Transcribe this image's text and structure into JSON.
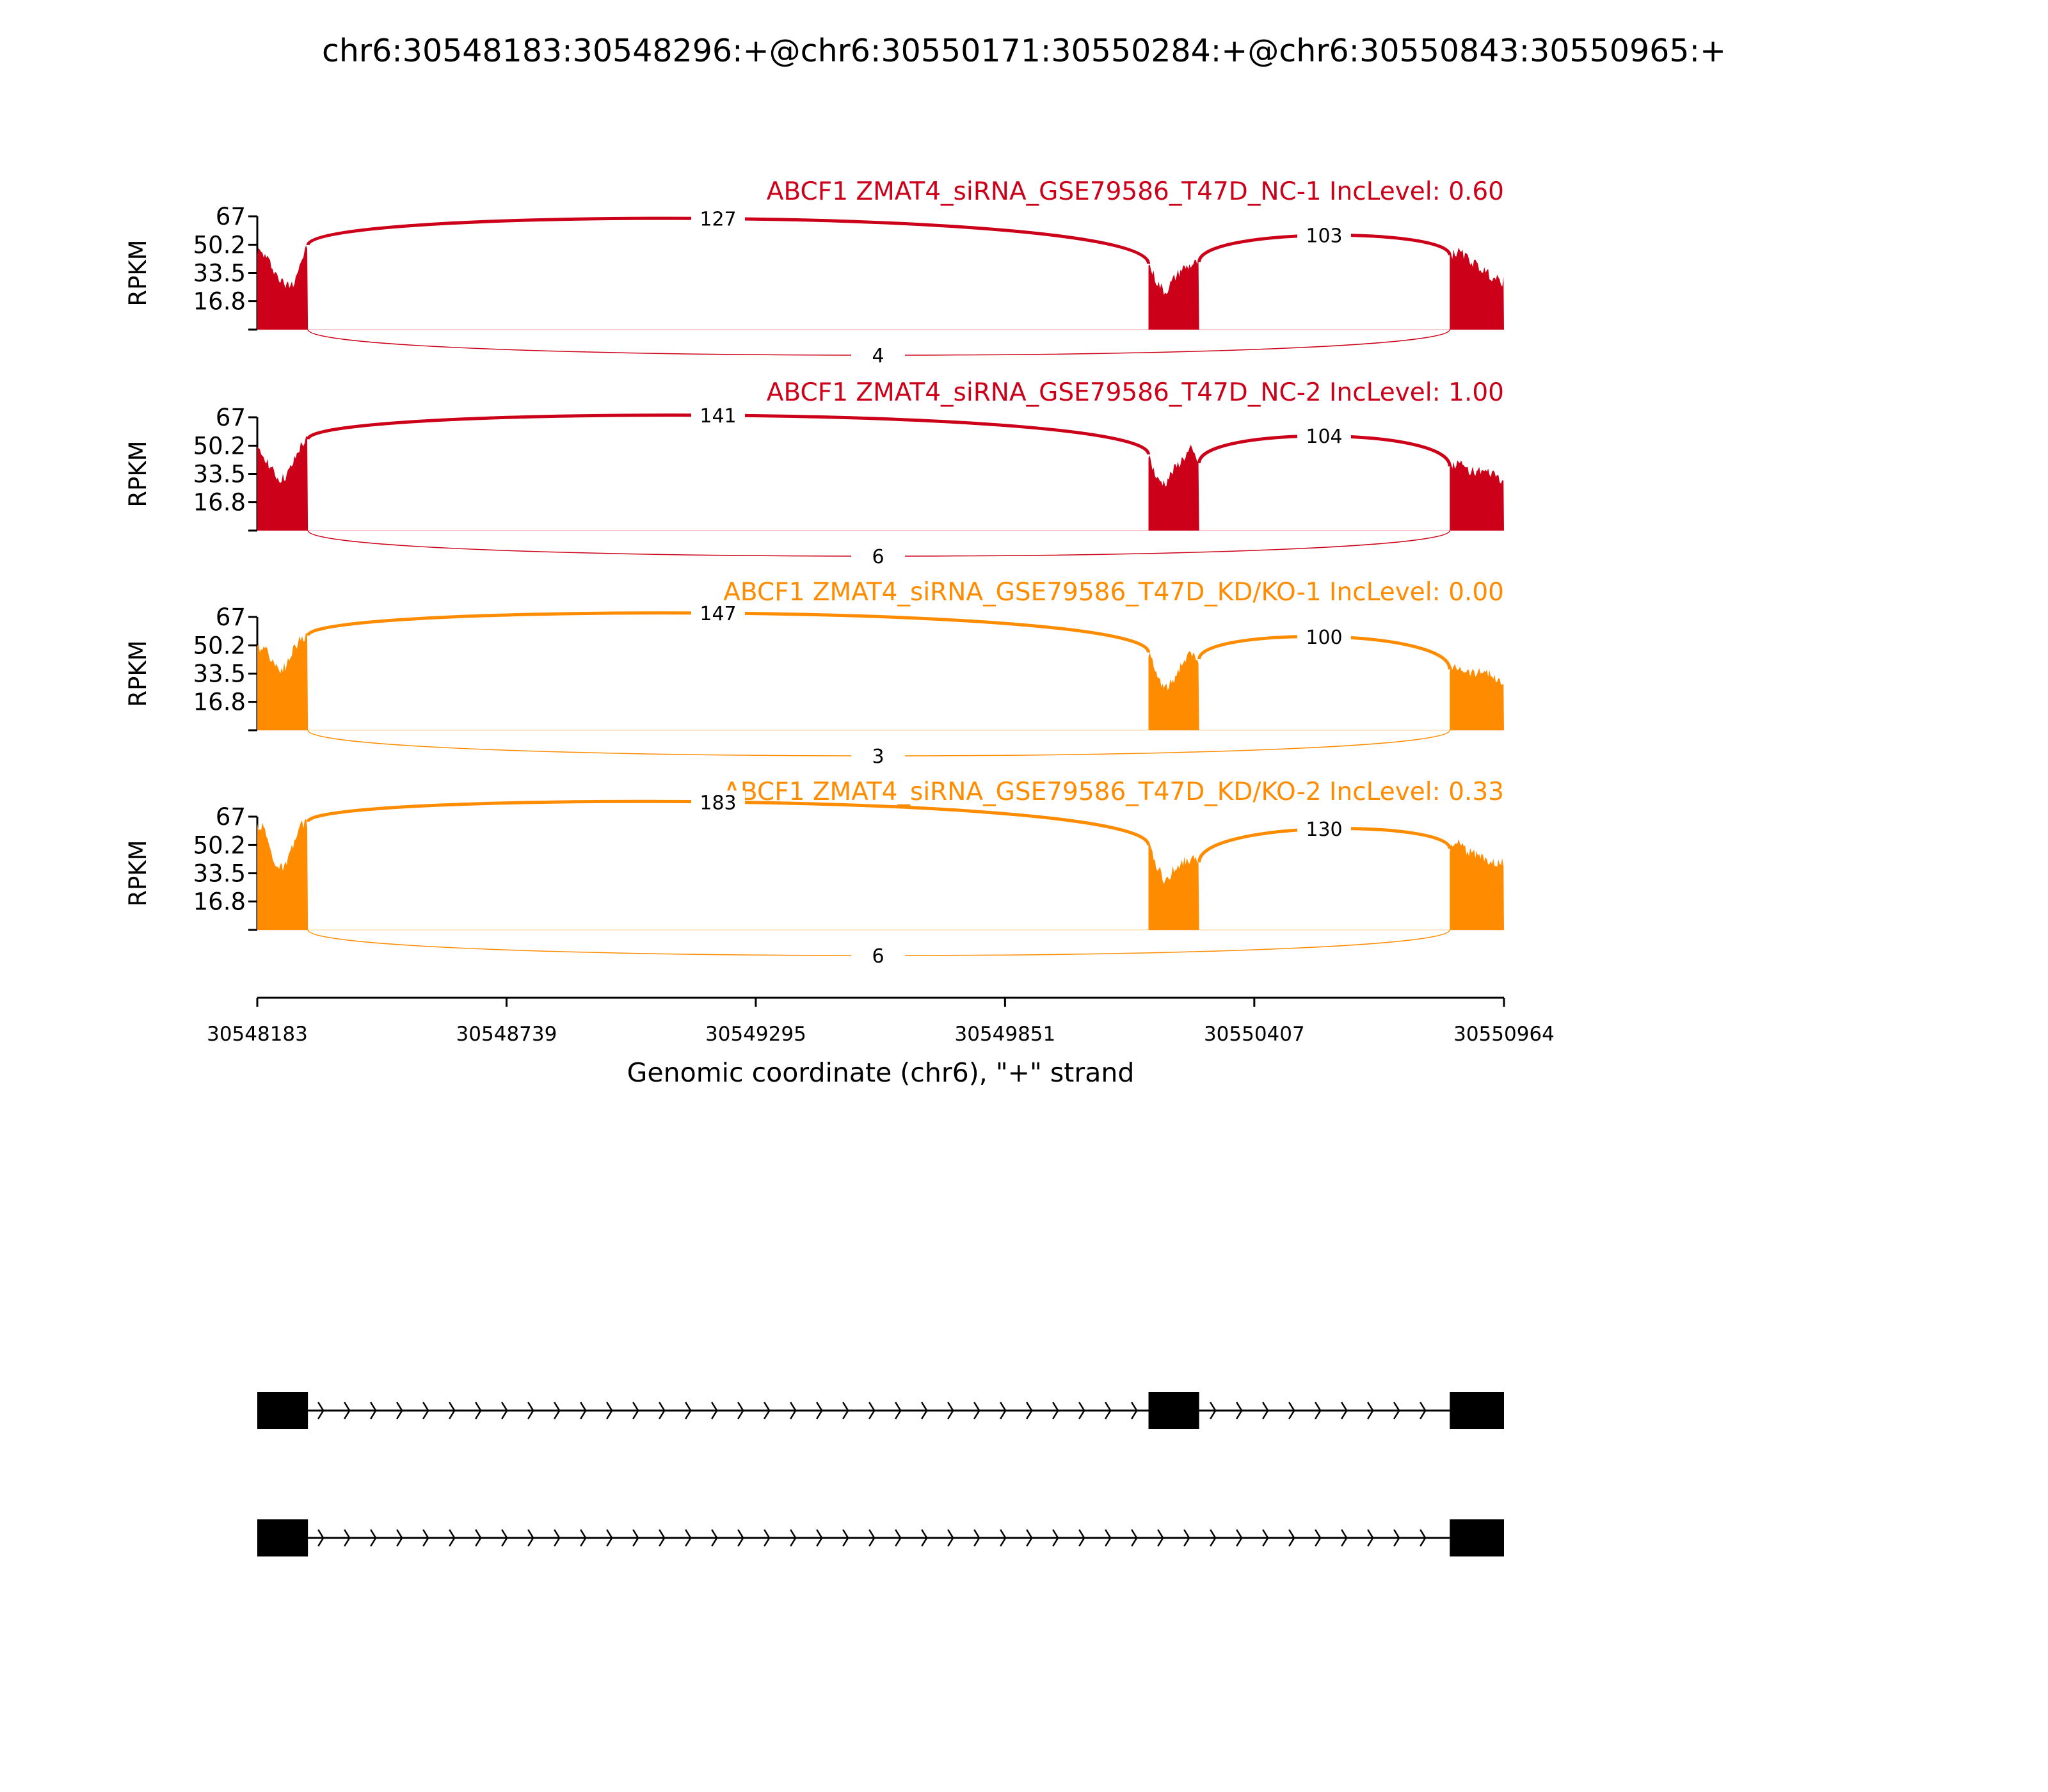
{
  "chart_data": {
    "type": "area",
    "title": "chr6:30548183:30548296:+@chr6:30550171:30550284:+@chr6:30550843:30550965:+",
    "xlabel": "Genomic coordinate (chr6), \"+\" strand",
    "ylabel": "RPKM",
    "xlim": [
      30548183,
      30550964
    ],
    "ylim": [
      0,
      67
    ],
    "x_ticks": [
      "30548183",
      "30548739",
      "30549295",
      "30549851",
      "30550407",
      "30550964"
    ],
    "x_tick_values": [
      30548183,
      30548739,
      30549295,
      30549851,
      30550407,
      30550964
    ],
    "y_ticks": [
      "67",
      "50.2",
      "33.5",
      "16.8"
    ],
    "y_tick_values": [
      67,
      50.2,
      33.5,
      16.8,
      0
    ],
    "exons": [
      [
        30548183,
        30548296
      ],
      [
        30550171,
        30550284
      ],
      [
        30550843,
        30550965
      ]
    ],
    "panels": [
      {
        "label": "ABCF1 ZMAT4_siRNA_GSE79586_T47D_NC-1 IncLevel: 0.60",
        "color": "#cc0018",
        "junctions": {
          "inc1": "127",
          "inc2": "103",
          "exc": "4"
        },
        "coverage": [
          [
            47,
            44,
            38,
            30,
            26,
            28,
            40,
            50
          ],
          [
            39,
            28,
            22,
            30,
            36,
            38,
            40
          ],
          [
            44,
            46,
            42,
            38,
            34,
            30,
            28
          ]
        ]
      },
      {
        "label": "ABCF1 ZMAT4_siRNA_GSE79586_T47D_NC-2 IncLevel: 1.00",
        "color": "#cc0018",
        "junctions": {
          "inc1": "141",
          "inc2": "104",
          "exc": "6"
        },
        "coverage": [
          [
            47,
            44,
            36,
            30,
            32,
            40,
            50,
            54
          ],
          [
            45,
            30,
            28,
            36,
            42,
            48,
            40
          ],
          [
            38,
            40,
            36,
            35,
            34,
            33,
            28
          ]
        ]
      },
      {
        "label": "ABCF1 ZMAT4_siRNA_GSE79586_T47D_KD/KO-1 IncLevel: 0.00",
        "color": "#ff8c00",
        "junctions": {
          "inc1": "147",
          "inc2": "100",
          "exc": "3"
        },
        "coverage": [
          [
            48,
            50,
            42,
            36,
            38,
            48,
            54,
            56
          ],
          [
            46,
            32,
            24,
            30,
            40,
            45,
            42
          ],
          [
            36,
            38,
            35,
            34,
            36,
            30,
            28
          ]
        ]
      },
      {
        "label": "ABCF1 ZMAT4_siRNA_GSE79586_T47D_KD/KO-2 IncLevel: 0.33",
        "color": "#ff8c00",
        "junctions": {
          "inc1": "183",
          "inc2": "130",
          "exc": "6"
        },
        "coverage": [
          [
            62,
            60,
            44,
            36,
            38,
            50,
            62,
            64
          ],
          [
            50,
            38,
            28,
            36,
            40,
            42,
            40
          ],
          [
            48,
            52,
            46,
            44,
            42,
            40,
            40
          ]
        ]
      }
    ],
    "gene_models": [
      {
        "exons": [
          [
            30548183,
            30548296
          ],
          [
            30550171,
            30550284
          ],
          [
            30550843,
            30550965
          ]
        ]
      },
      {
        "exons": [
          [
            30548183,
            30548296
          ],
          [
            30550843,
            30550965
          ]
        ]
      }
    ]
  }
}
